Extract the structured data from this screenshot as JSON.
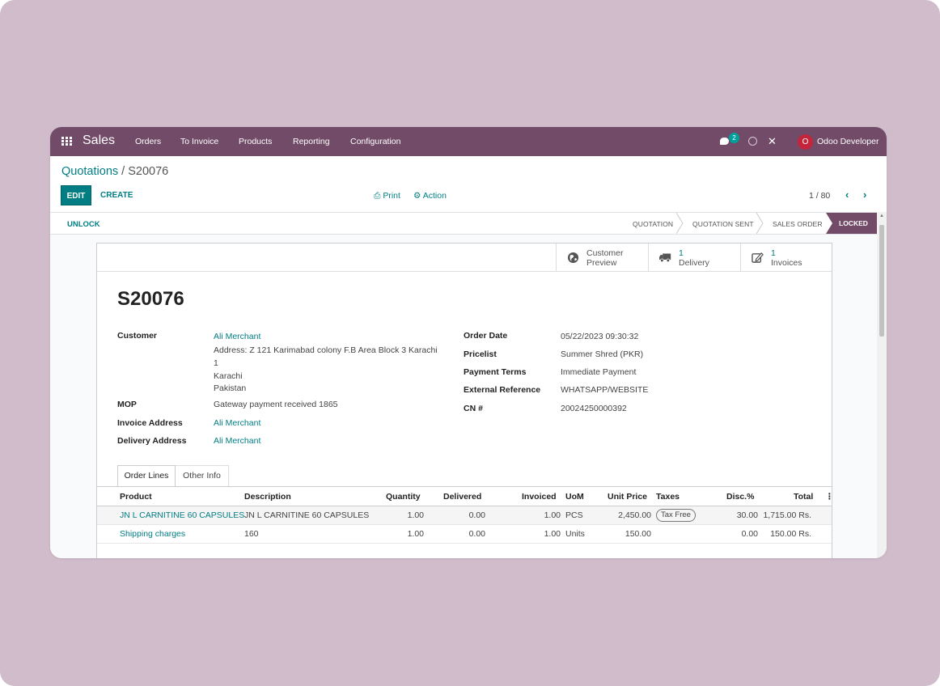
{
  "navbar": {
    "app_name": "Sales",
    "menu": [
      "Orders",
      "To Invoice",
      "Products",
      "Reporting",
      "Configuration"
    ],
    "chat_count": "2",
    "avatar_letter": "O",
    "user_name": "Odoo Developer",
    "bg_color": "#714b67"
  },
  "breadcrumb": {
    "parent": "Quotations",
    "separator": " / ",
    "current": "S20076"
  },
  "control": {
    "edit_label": "EDIT",
    "create_label": "CREATE",
    "print_label": "Print",
    "action_label": "Action",
    "pager_value": "1 / 80"
  },
  "status": {
    "unlock_label": "UNLOCK",
    "stages": [
      "QUOTATION",
      "QUOTATION SENT",
      "SALES ORDER"
    ],
    "active_stage": "LOCKED"
  },
  "smart_buttons": [
    {
      "icon": "globe-icon",
      "top": "Customer",
      "bottom": "Preview"
    },
    {
      "icon": "truck-icon",
      "top": "1",
      "bottom": "Delivery"
    },
    {
      "icon": "invoice-edit-icon",
      "top": "1",
      "bottom": "Invoices"
    }
  ],
  "order": {
    "title": "S20076",
    "customer_label": "Customer",
    "customer_name": "Ali Merchant",
    "customer_address_1": "Address: Z 121 Karimabad colony F.B Area Block 3 Karachi",
    "customer_address_2": "1",
    "customer_city": "Karachi",
    "customer_country": "Pakistan",
    "mop_label": "MOP",
    "mop_value": "Gateway payment received 1865",
    "invoice_address_label": "Invoice Address",
    "invoice_address_value": "Ali Merchant",
    "delivery_address_label": "Delivery Address",
    "delivery_address_value": "Ali Merchant",
    "order_date_label": "Order Date",
    "order_date_value": "05/22/2023 09:30:32",
    "pricelist_label": "Pricelist",
    "pricelist_value": "Summer Shred (PKR)",
    "payment_terms_label": "Payment Terms",
    "payment_terms_value": "Immediate Payment",
    "external_ref_label": "External Reference",
    "external_ref_value": "WHATSAPP/WEBSITE",
    "cn_label": "CN #",
    "cn_value": "20024250000392"
  },
  "tabs": [
    "Order Lines",
    "Other Info"
  ],
  "table": {
    "headers": [
      "Product",
      "Description",
      "Quantity",
      "Delivered",
      "Invoiced",
      "UoM",
      "Unit Price",
      "Taxes",
      "Disc.%",
      "Total"
    ],
    "rows": [
      {
        "product": "JN L CARNITINE 60 CAPSULES",
        "description": "JN L CARNITINE 60 CAPSULES",
        "quantity": "1.00",
        "delivered": "0.00",
        "invoiced": "1.00",
        "uom": "PCS",
        "unit_price": "2,450.00",
        "taxes": "Tax Free",
        "discount": "30.00",
        "total": "1,715.00 Rs."
      },
      {
        "product": "Shipping charges",
        "description": "160",
        "quantity": "1.00",
        "delivered": "0.00",
        "invoiced": "1.00",
        "uom": "Units",
        "unit_price": "150.00",
        "taxes": "",
        "discount": "0.00",
        "total": "150.00 Rs."
      }
    ]
  }
}
